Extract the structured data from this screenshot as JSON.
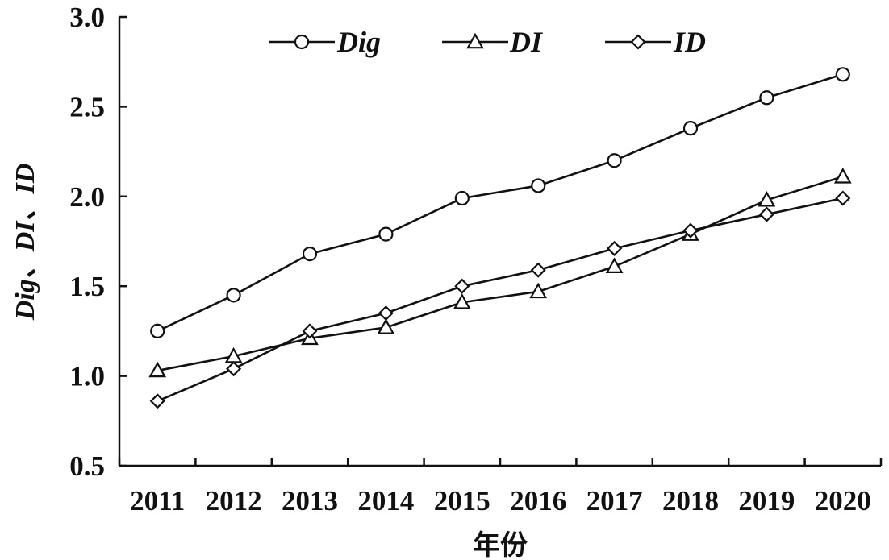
{
  "chart_data": {
    "type": "line",
    "title": "",
    "xlabel": "年份",
    "ylabel": "Dig、DI、ID",
    "categories": [
      "2011",
      "2012",
      "2013",
      "2014",
      "2015",
      "2016",
      "2017",
      "2018",
      "2019",
      "2020"
    ],
    "ylim": [
      0.5,
      3.0
    ],
    "yticks": [
      "0.5",
      "1.0",
      "1.5",
      "2.0",
      "2.5",
      "3.0"
    ],
    "grid": false,
    "legend_position": "top",
    "series": [
      {
        "name": "Dig",
        "marker": "circle",
        "values": [
          1.25,
          1.45,
          1.68,
          1.79,
          1.99,
          2.06,
          2.2,
          2.38,
          2.55,
          2.68
        ]
      },
      {
        "name": "DI",
        "marker": "triangle",
        "values": [
          1.03,
          1.11,
          1.21,
          1.27,
          1.41,
          1.47,
          1.61,
          1.79,
          1.98,
          2.11
        ]
      },
      {
        "name": "ID",
        "marker": "diamond",
        "values": [
          0.86,
          1.04,
          1.25,
          1.35,
          1.5,
          1.59,
          1.71,
          1.81,
          1.9,
          1.99
        ]
      }
    ]
  }
}
